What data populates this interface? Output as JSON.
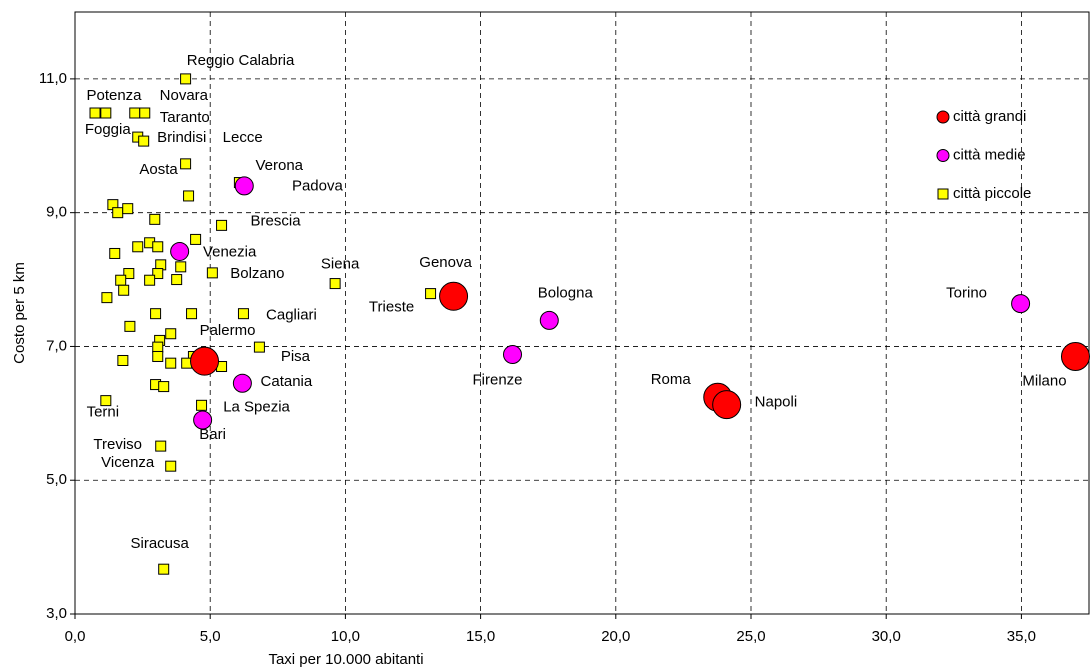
{
  "chart_data": {
    "type": "scatter",
    "x_label": "Taxi per 10.000 abitanti",
    "y_label": "Costo per 5 km",
    "xlim": [
      0,
      37.5
    ],
    "ylim": [
      3,
      12
    ],
    "xticks": [
      {
        "value": 0,
        "label": "0,0"
      },
      {
        "value": 5,
        "label": "5,0"
      },
      {
        "value": 10,
        "label": "10,0"
      },
      {
        "value": 15,
        "label": "15,0"
      },
      {
        "value": 20,
        "label": "20,0"
      },
      {
        "value": 25,
        "label": "25,0"
      },
      {
        "value": 30,
        "label": "30,0"
      },
      {
        "value": 35,
        "label": "35,0"
      }
    ],
    "yticks": [
      {
        "value": 3,
        "label": "3,0"
      },
      {
        "value": 5,
        "label": "5,0"
      },
      {
        "value": 7,
        "label": "7,0"
      },
      {
        "value": 9,
        "label": "9,0"
      },
      {
        "value": 11,
        "label": "11,0"
      }
    ],
    "grid": true,
    "legend": "upper right",
    "series": [
      {
        "name": "città piccole",
        "color": "#ffff00",
        "marker": "square",
        "x": [
          4.09,
          0.74,
          1.14,
          2.21,
          2.58,
          2.32,
          2.54,
          4.09,
          4.2,
          6.08,
          5.42,
          1.4,
          1.58,
          1.95,
          2.95,
          4.46,
          2.32,
          2.76,
          3.06,
          1.47,
          3.91,
          3.17,
          3.06,
          5.08,
          1.99,
          1.69,
          2.76,
          3.76,
          1.8,
          9.62,
          13.15,
          1.18,
          2.98,
          4.31,
          6.23,
          2.03,
          3.54,
          3.13,
          3.06,
          6.82,
          4.38,
          3.06,
          1.77,
          3.54,
          4.13,
          5.42,
          2.98,
          3.28,
          1.14,
          4.68,
          3.17,
          3.54,
          3.28
        ],
        "values": [
          11.0,
          10.49,
          10.49,
          10.49,
          10.49,
          10.13,
          10.07,
          9.73,
          9.25,
          9.45,
          8.81,
          9.12,
          9.0,
          9.06,
          8.9,
          8.6,
          8.49,
          8.55,
          8.49,
          8.39,
          8.19,
          8.22,
          8.09,
          8.1,
          8.09,
          7.99,
          7.99,
          8.0,
          7.84,
          7.94,
          7.79,
          7.73,
          7.49,
          7.49,
          7.49,
          7.3,
          7.19,
          7.09,
          6.99,
          6.99,
          6.85,
          6.85,
          6.79,
          6.75,
          6.75,
          6.7,
          6.43,
          6.4,
          6.19,
          6.12,
          5.51,
          5.21,
          3.67
        ],
        "labels": [
          "Reggio Calabria",
          "Potenza",
          "Novara",
          "Taranto",
          "Foggia",
          "Brindisi",
          "Lecce",
          "Aosta",
          null,
          "Padova",
          "Brescia",
          null,
          null,
          null,
          null,
          null,
          null,
          null,
          null,
          null,
          null,
          null,
          null,
          "Bolzano",
          null,
          null,
          null,
          null,
          null,
          "Siena",
          "Trieste",
          null,
          null,
          null,
          "Cagliari",
          null,
          null,
          null,
          null,
          "Pisa",
          null,
          null,
          null,
          null,
          null,
          null,
          null,
          null,
          "Terni",
          "La Spezia",
          "Treviso",
          "Vicenza",
          "Siracusa"
        ]
      },
      {
        "name": "città medie",
        "color": "#ff00ff",
        "marker": "circle-medium",
        "x": [
          6.26,
          3.87,
          17.54,
          16.18,
          6.19,
          4.72,
          34.97
        ],
        "values": [
          9.4,
          8.42,
          7.39,
          6.88,
          6.45,
          5.9,
          7.64
        ],
        "labels": [
          "Verona",
          "Venezia",
          "Bologna",
          "Firenze",
          "Catania",
          "Bari",
          "Torino"
        ]
      },
      {
        "name": "città grandi",
        "color": "#ff0000",
        "marker": "circle-large",
        "x": [
          14.0,
          4.79,
          23.77,
          24.1,
          37.0
        ],
        "values": [
          7.75,
          6.78,
          6.24,
          6.13,
          6.85
        ],
        "labels": [
          "Genova",
          "Palermo",
          "Roma",
          "Napoli",
          "Milano"
        ]
      }
    ]
  }
}
